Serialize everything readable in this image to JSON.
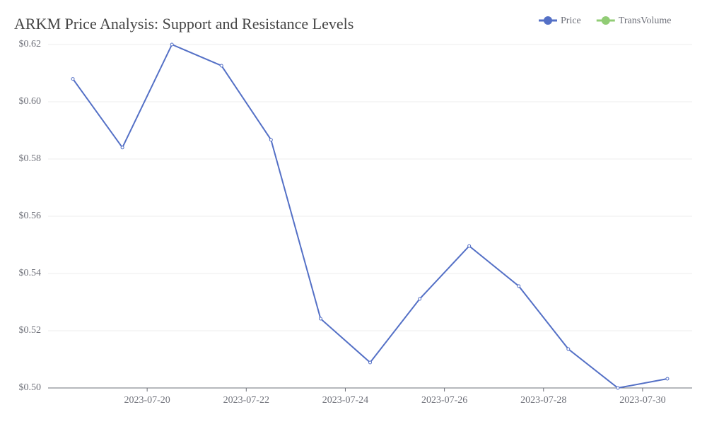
{
  "chart_data": {
    "type": "line",
    "title": "ARKM Price Analysis: Support and Resistance Levels",
    "x": [
      "2023-07-18",
      "2023-07-19",
      "2023-07-20",
      "2023-07-21",
      "2023-07-22",
      "2023-07-23",
      "2023-07-24",
      "2023-07-25",
      "2023-07-26",
      "2023-07-27",
      "2023-07-28",
      "2023-07-29",
      "2023-07-30"
    ],
    "series": [
      {
        "name": "Price",
        "color": "#5470c6",
        "values": [
          0.608,
          0.584,
          0.62,
          0.6126,
          0.5867,
          0.5242,
          0.5089,
          0.5311,
          0.5496,
          0.5356,
          0.5136,
          0.5,
          0.5032
        ]
      }
    ],
    "legend": [
      {
        "name": "Price",
        "color": "#5470c6"
      },
      {
        "name": "TransVolume",
        "color": "#91cc75"
      }
    ],
    "xlim": [
      "2023-07-18",
      "2023-07-31"
    ],
    "xticks": [
      "2023-07-20",
      "2023-07-22",
      "2023-07-24",
      "2023-07-26",
      "2023-07-28",
      "2023-07-30"
    ],
    "ylim": [
      0.5,
      0.62
    ],
    "yticks": [
      {
        "value": 0.5,
        "label": "$0.50"
      },
      {
        "value": 0.52,
        "label": "$0.52"
      },
      {
        "value": 0.54,
        "label": "$0.54"
      },
      {
        "value": 0.56,
        "label": "$0.56"
      },
      {
        "value": 0.58,
        "label": "$0.58"
      },
      {
        "value": 0.6,
        "label": "$0.60"
      },
      {
        "value": 0.62,
        "label": "$0.62"
      }
    ],
    "grid": true,
    "legend_position": "top-right"
  }
}
